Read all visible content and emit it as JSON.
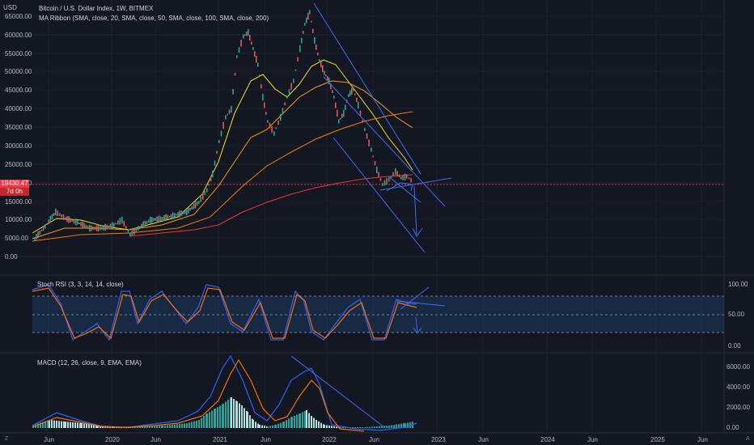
{
  "header": {
    "title": "Bitcoin / U.S. Dollar Index, 1W, BITMEX",
    "indicator": "MA Ribbon (SMA, close, 20, SMA, close, 50, SMA, close, 100, SMA, close, 200)",
    "currency": "USD"
  },
  "price_axis": [
    "65000.00",
    "60000.00",
    "55000.00",
    "50000.00",
    "45000.00",
    "40000.00",
    "35000.00",
    "30000.00",
    "25000.00",
    "20000.00",
    "15000.00",
    "10000.00",
    "5000.00",
    "0.00"
  ],
  "current_price": {
    "value": "19430.47",
    "countdown": "7d 0h"
  },
  "rsi": {
    "label": "Stoch RSI (3, 3, 14, 14, close)",
    "axis": [
      "100.00",
      "50.00",
      "0.00"
    ]
  },
  "macd": {
    "label": "MACD (12, 26, close, 9, EMA, EMA)",
    "axis": [
      "6000.00",
      "4000.00",
      "2000.00",
      "0.00"
    ]
  },
  "time_axis": [
    "Jun",
    "2020",
    "Jun",
    "2021",
    "Jun",
    "2022",
    "Jun",
    "2023",
    "Jun",
    "2024",
    "Jun",
    "2025",
    "Jun"
  ],
  "corner": {
    "left": "Z",
    "right": "A"
  },
  "colors": {
    "bg": "#131722",
    "up": "#26a69a",
    "down": "#ef5350",
    "ma20": "#f7e01d",
    "ma50": "#ff9800",
    "ma100": "#f57c00",
    "ma200": "#e53935",
    "draw": "#2962ff",
    "k": "#2962ff",
    "d": "#ff6d00"
  },
  "chart_data": {
    "type": "line",
    "title": "Bitcoin / U.S. Dollar Index, 1W, BITMEX",
    "x": [
      "2019-04",
      "2019-07",
      "2019-10",
      "2020-01",
      "2020-04",
      "2020-07",
      "2020-10",
      "2021-01",
      "2021-04",
      "2021-07",
      "2021-10",
      "2022-01",
      "2022-04",
      "2022-07",
      "2022-10"
    ],
    "series": [
      {
        "name": "Price",
        "values": [
          5000,
          11500,
          8500,
          7200,
          7000,
          9200,
          11500,
          33000,
          58000,
          33000,
          62000,
          42000,
          40000,
          20500,
          19430
        ]
      }
    ],
    "ylim": [
      0,
      65000
    ]
  }
}
